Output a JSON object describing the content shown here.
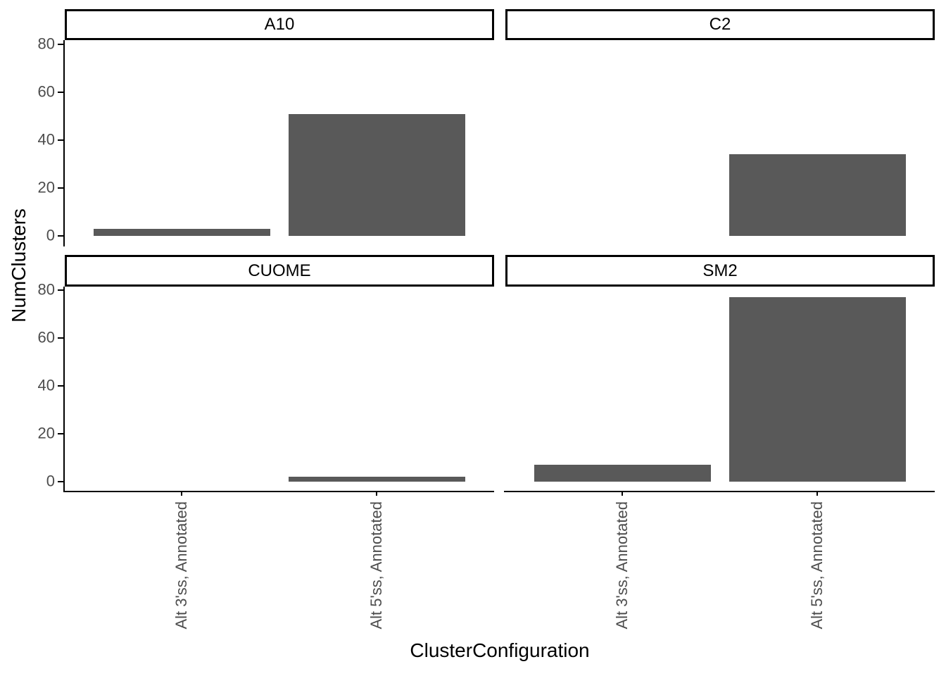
{
  "chart_data": {
    "type": "bar",
    "title": "",
    "xlabel": "ClusterConfiguration",
    "ylabel": "NumClusters",
    "categories": [
      "Alt 3'ss, Annotated",
      "Alt 5'ss, Annotated"
    ],
    "facets": [
      {
        "label": "A10",
        "values": [
          3,
          51
        ]
      },
      {
        "label": "C2",
        "values": [
          0,
          34
        ]
      },
      {
        "label": "CUOME",
        "values": [
          0,
          2
        ]
      },
      {
        "label": "SM2",
        "values": [
          7,
          77
        ]
      }
    ],
    "y_ticks": [
      0,
      20,
      40,
      60,
      80
    ],
    "ylim": [
      -3.85,
      80.85
    ],
    "bar_color": "#595959",
    "axis_color": "#000000",
    "tick_label_color": "#4D4D4D",
    "strip_background": "#ffffff",
    "panel_background": "#ffffff",
    "grid": false,
    "legend_position": "none",
    "facet_layout": "2x2"
  }
}
